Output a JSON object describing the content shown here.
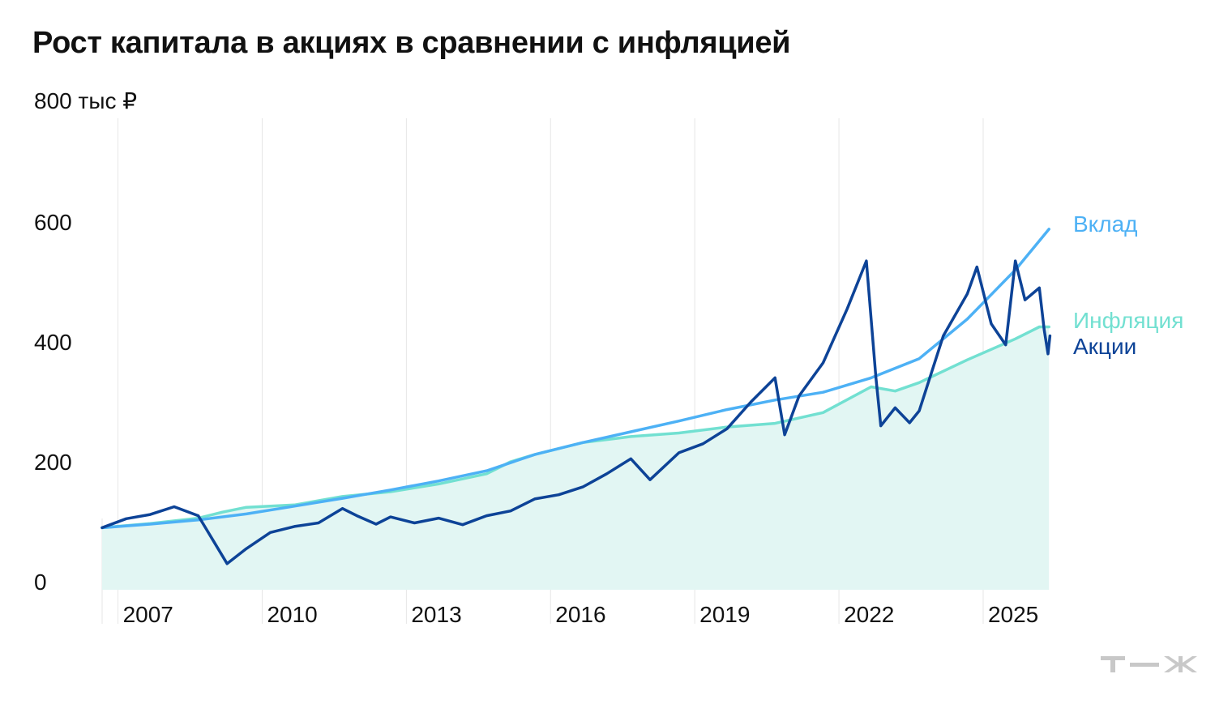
{
  "title": "Рост капитала в акциях в сравнении с инфляцией",
  "chart_data": {
    "type": "line",
    "title": "Рост капитала в акциях в сравнении с инфляцией",
    "y_unit": "тыс ₽",
    "y_top_label": "800 тыс ₽",
    "ylim": [
      0,
      800
    ],
    "y_ticks": [
      "0",
      "200",
      "400",
      "600"
    ],
    "x_ticks": [
      "2007",
      "2010",
      "2013",
      "2016",
      "2019",
      "2022",
      "2025"
    ],
    "xlim": [
      2006.0,
      2026.0
    ],
    "grid": "vertical lines at year ticks",
    "series": [
      {
        "name": "Вклад",
        "color": "#4db1f5",
        "points": [
          [
            2006.0,
            90
          ],
          [
            2007,
            96
          ],
          [
            2008,
            103
          ],
          [
            2009,
            113
          ],
          [
            2010,
            126
          ],
          [
            2011,
            139
          ],
          [
            2012,
            153
          ],
          [
            2013,
            168
          ],
          [
            2014,
            185
          ],
          [
            2015,
            212
          ],
          [
            2016,
            232
          ],
          [
            2017,
            250
          ],
          [
            2018,
            268
          ],
          [
            2019,
            287
          ],
          [
            2020,
            303
          ],
          [
            2021,
            316
          ],
          [
            2022,
            340
          ],
          [
            2023,
            372
          ],
          [
            2024,
            438
          ],
          [
            2025,
            520
          ],
          [
            2025.7,
            588
          ]
        ]
      },
      {
        "name": "Инфляция",
        "color": "#72e0d1",
        "filled": true,
        "points": [
          [
            2006.0,
            90
          ],
          [
            2007,
            97
          ],
          [
            2008,
            106
          ],
          [
            2008.5,
            116
          ],
          [
            2009,
            124
          ],
          [
            2010,
            128
          ],
          [
            2011,
            142
          ],
          [
            2012,
            150
          ],
          [
            2013,
            163
          ],
          [
            2014,
            180
          ],
          [
            2014.5,
            200
          ],
          [
            2015,
            212
          ],
          [
            2016,
            232
          ],
          [
            2017,
            242
          ],
          [
            2018,
            248
          ],
          [
            2019,
            258
          ],
          [
            2020,
            264
          ],
          [
            2021,
            282
          ],
          [
            2022,
            325
          ],
          [
            2022.5,
            318
          ],
          [
            2023,
            332
          ],
          [
            2024,
            370
          ],
          [
            2025,
            405
          ],
          [
            2025.5,
            425
          ],
          [
            2025.7,
            425
          ]
        ]
      },
      {
        "name": "Акции",
        "color": "#0d4397",
        "points": [
          [
            2006.0,
            90
          ],
          [
            2006.5,
            105
          ],
          [
            2007,
            112
          ],
          [
            2007.5,
            125
          ],
          [
            2008.0,
            110
          ],
          [
            2008.3,
            70
          ],
          [
            2008.6,
            30
          ],
          [
            2009,
            55
          ],
          [
            2009.5,
            82
          ],
          [
            2010,
            92
          ],
          [
            2010.5,
            98
          ],
          [
            2011,
            122
          ],
          [
            2011.3,
            110
          ],
          [
            2011.7,
            96
          ],
          [
            2012,
            108
          ],
          [
            2012.5,
            98
          ],
          [
            2013,
            106
          ],
          [
            2013.5,
            95
          ],
          [
            2014,
            110
          ],
          [
            2014.5,
            118
          ],
          [
            2015,
            138
          ],
          [
            2015.5,
            145
          ],
          [
            2016,
            158
          ],
          [
            2016.5,
            180
          ],
          [
            2017,
            205
          ],
          [
            2017.4,
            170
          ],
          [
            2018,
            215
          ],
          [
            2018.5,
            230
          ],
          [
            2019,
            255
          ],
          [
            2019.5,
            300
          ],
          [
            2020,
            340
          ],
          [
            2020.2,
            245
          ],
          [
            2020.5,
            310
          ],
          [
            2021,
            365
          ],
          [
            2021.5,
            455
          ],
          [
            2021.9,
            535
          ],
          [
            2022.1,
            340
          ],
          [
            2022.2,
            260
          ],
          [
            2022.5,
            290
          ],
          [
            2022.8,
            265
          ],
          [
            2023,
            285
          ],
          [
            2023.5,
            410
          ],
          [
            2024,
            480
          ],
          [
            2024.2,
            525
          ],
          [
            2024.5,
            430
          ],
          [
            2024.8,
            395
          ],
          [
            2025.0,
            535
          ],
          [
            2025.2,
            470
          ],
          [
            2025.5,
            490
          ],
          [
            2025.6,
            420
          ],
          [
            2025.68,
            380
          ],
          [
            2025.72,
            410
          ]
        ]
      }
    ]
  },
  "logo_text": "т—ж"
}
